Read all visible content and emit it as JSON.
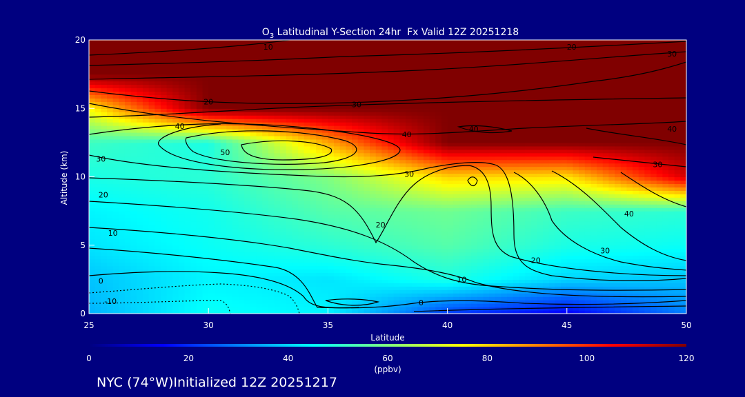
{
  "chart_data": {
    "type": "heatmap",
    "title": {
      "prefix": "O",
      "subscript": "3",
      "rest": " Latitudinal Y-Section 24hr  Fx Valid 12Z 20251218"
    },
    "xlabel": "Latitude",
    "ylabel": "Altitude (km)",
    "xlim": [
      25,
      50
    ],
    "ylim": [
      0,
      20
    ],
    "x_ticks": [
      "25",
      "30",
      "35",
      "40",
      "45",
      "50"
    ],
    "y_ticks": [
      "0",
      "5",
      "10",
      "15",
      "20"
    ],
    "colorbar": {
      "range": [
        0,
        120
      ],
      "ticks": [
        "0",
        "20",
        "40",
        "60",
        "80",
        "100",
        "120"
      ],
      "unit_label": "(ppbv)"
    },
    "lats": [
      25,
      30,
      35,
      40,
      45,
      50
    ],
    "alts": [
      0,
      2.5,
      5,
      7.5,
      10,
      12.5,
      15,
      17.5,
      20
    ],
    "ozone_ppbv": [
      [
        36,
        46,
        44,
        22,
        14,
        30
      ],
      [
        38,
        44,
        42,
        48,
        40,
        38
      ],
      [
        42,
        46,
        50,
        55,
        48,
        46
      ],
      [
        44,
        47,
        55,
        58,
        52,
        50
      ],
      [
        48,
        50,
        60,
        80,
        78,
        110
      ],
      [
        52,
        48,
        85,
        120,
        120,
        120
      ],
      [
        75,
        120,
        120,
        120,
        120,
        120
      ],
      [
        120,
        120,
        120,
        120,
        120,
        120
      ],
      [
        120,
        120,
        120,
        120,
        120,
        120
      ]
    ],
    "contour_labels": [
      {
        "text": "10",
        "lat": 32.5,
        "alt": 19.5
      },
      {
        "text": "20",
        "lat": 45.2,
        "alt": 19.5
      },
      {
        "text": "30",
        "lat": 49.4,
        "alt": 19.0
      },
      {
        "text": "20",
        "lat": 30.0,
        "alt": 15.5
      },
      {
        "text": "30",
        "lat": 36.2,
        "alt": 15.3
      },
      {
        "text": "40",
        "lat": 38.3,
        "alt": 13.1
      },
      {
        "text": "40",
        "lat": 41.1,
        "alt": 13.5
      },
      {
        "text": "40",
        "lat": 49.4,
        "alt": 13.5
      },
      {
        "text": "40",
        "lat": 28.8,
        "alt": 13.7
      },
      {
        "text": "50",
        "lat": 30.7,
        "alt": 11.8
      },
      {
        "text": "30",
        "lat": 25.5,
        "alt": 11.3
      },
      {
        "text": "30",
        "lat": 38.4,
        "alt": 10.2
      },
      {
        "text": "30",
        "lat": 48.8,
        "alt": 10.9
      },
      {
        "text": "20",
        "lat": 25.6,
        "alt": 8.7
      },
      {
        "text": "20",
        "lat": 37.2,
        "alt": 6.5
      },
      {
        "text": "40",
        "lat": 47.6,
        "alt": 7.3
      },
      {
        "text": "10",
        "lat": 26.0,
        "alt": 5.9
      },
      {
        "text": "30",
        "lat": 46.6,
        "alt": 4.6
      },
      {
        "text": "20",
        "lat": 43.7,
        "alt": 3.9
      },
      {
        "text": "10",
        "lat": 40.6,
        "alt": 2.5
      },
      {
        "text": "0",
        "lat": 25.5,
        "alt": 2.4
      },
      {
        "text": "0",
        "lat": 38.9,
        "alt": 0.8
      },
      {
        "text": "-10",
        "lat": 25.9,
        "alt": 0.9
      }
    ]
  },
  "footer": {
    "info": "NYC (74°W)Initialized 12Z 20251217"
  }
}
